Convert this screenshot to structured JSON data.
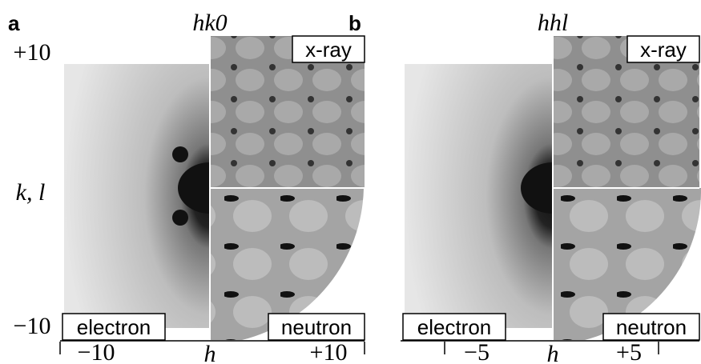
{
  "panels": [
    {
      "label": "a",
      "title": "hk0",
      "y_axis": {
        "top": "+10",
        "label": "k, l",
        "bottom": "−10"
      },
      "x_axis": {
        "left": "−10",
        "label": "h",
        "right": "+10"
      },
      "insets": {
        "top_right": "x-ray",
        "bottom_right": "neutron",
        "bottom_left": "electron"
      }
    },
    {
      "label": "b",
      "title": "hhl",
      "x_axis": {
        "left": "−5",
        "label": "h",
        "right": "+5"
      },
      "insets": {
        "top_right": "x-ray",
        "bottom_right": "neutron",
        "bottom_left": "electron"
      }
    }
  ]
}
